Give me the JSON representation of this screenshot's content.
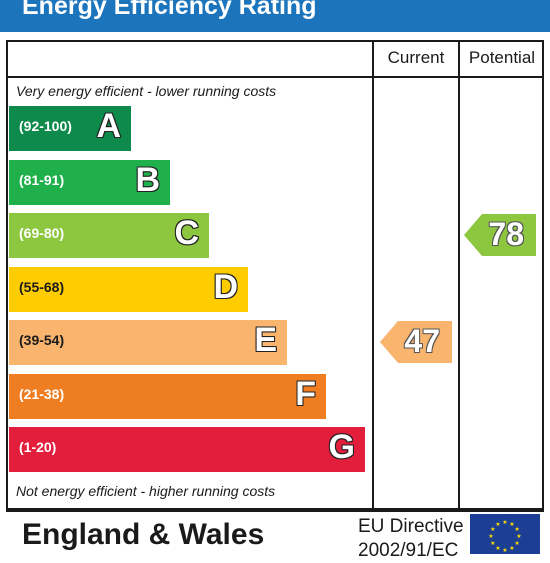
{
  "title": "Energy Efficiency Rating",
  "columns": {
    "current": "Current",
    "potential": "Potential"
  },
  "top_note": "Very energy efficient - lower running costs",
  "bottom_note": "Not energy efficient - higher running costs",
  "footer": {
    "region": "England & Wales",
    "directive_line1": "EU Directive",
    "directive_line2": "2002/91/EC"
  },
  "colors": {
    "title_bar": "#1b74bc",
    "A": "#0f8a4d",
    "B": "#1fb04c",
    "C": "#8dc63f",
    "D": "#ffcc00",
    "E": "#f9b46e",
    "F": "#ef7d22",
    "G": "#e31d3c",
    "eu_flag": "#1c3f95",
    "eu_stars": "#ffdd00"
  },
  "chart_data": {
    "type": "bar",
    "categories": [
      "A",
      "B",
      "C",
      "D",
      "E",
      "F",
      "G"
    ],
    "ranges": [
      "(92-100)",
      "(81-91)",
      "(69-80)",
      "(55-68)",
      "(39-54)",
      "(21-38)",
      "(1-20)"
    ],
    "current": {
      "value": 47,
      "band": "E"
    },
    "potential": {
      "value": 78,
      "band": "C"
    }
  }
}
